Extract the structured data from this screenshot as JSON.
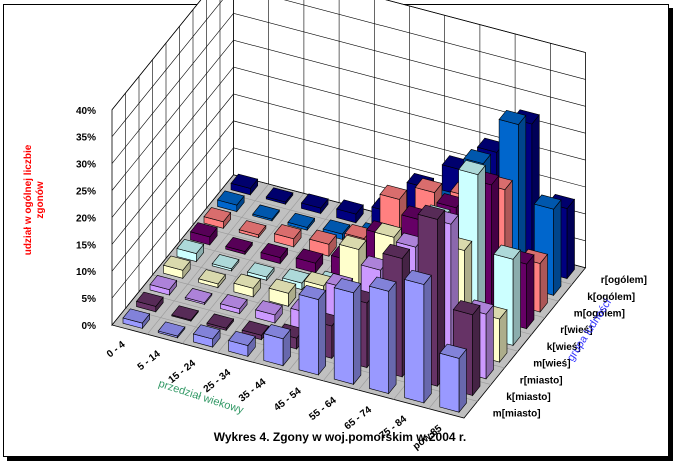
{
  "chart_data": {
    "type": "bar",
    "title": "Wykres 4.   Zgony  w   woj.pomorskim  w  2004 r.",
    "ylabel_lines": [
      "udział  w ogólnej liczbie",
      "zgonów"
    ],
    "xlabel": "przedział wiekowy",
    "zlabel": "grupa ludności",
    "yticks": [
      "0%",
      "5%",
      "10%",
      "15%",
      "20%",
      "25%",
      "30%",
      "35%",
      "40%"
    ],
    "ylim": [
      0,
      40
    ],
    "categories": [
      "0 - 4",
      "5 - 14",
      "15 - 24",
      "25 - 34",
      "35 - 44",
      "45 - 54",
      "55 - 64",
      "65 - 74",
      "75 - 84",
      "pow.85"
    ],
    "series": [
      {
        "name": "m[miasto]",
        "color": "#9999ff",
        "values": [
          1,
          0.3,
          1.5,
          2,
          5,
          14,
          17,
          19,
          22,
          10
        ]
      },
      {
        "name": "k[miasto]",
        "color": "#663366",
        "values": [
          1,
          0.2,
          0.4,
          0.8,
          2,
          6,
          12,
          22,
          31,
          15
        ]
      },
      {
        "name": "r[miasto]",
        "color": "#cc99ff",
        "values": [
          1,
          0.3,
          0.9,
          1.5,
          3.5,
          10,
          15,
          21,
          27,
          12
        ]
      },
      {
        "name": "m[wieś]",
        "color": "#ffffcc",
        "values": [
          1.5,
          0.7,
          1.6,
          2.4,
          5.5,
          14,
          18,
          17,
          19,
          8
        ]
      },
      {
        "name": "k[wieś]",
        "color": "#ccffff",
        "values": [
          1.5,
          0.4,
          0.6,
          1.2,
          2.5,
          7,
          12,
          20,
          30,
          16
        ]
      },
      {
        "name": "r[wieś]",
        "color": "#660066",
        "values": [
          1.5,
          0.5,
          1.1,
          1.8,
          4,
          10.5,
          15,
          19,
          25,
          12
        ]
      },
      {
        "name": "m[ogólem]",
        "color": "#ff8080",
        "values": [
          1.2,
          0.5,
          1.5,
          2.2,
          5,
          14,
          17,
          18,
          21,
          9
        ]
      },
      {
        "name": "k[ogólem]",
        "color": "#0066cc",
        "values": [
          1.2,
          0.3,
          0.5,
          1,
          2.2,
          6.5,
          12,
          21,
          30,
          16
        ]
      },
      {
        "name": "r[ogólem]",
        "color": "#000080",
        "values": [
          1.2,
          0.4,
          1,
          1.6,
          3.7,
          10,
          15,
          20,
          27,
          13
        ]
      }
    ]
  }
}
